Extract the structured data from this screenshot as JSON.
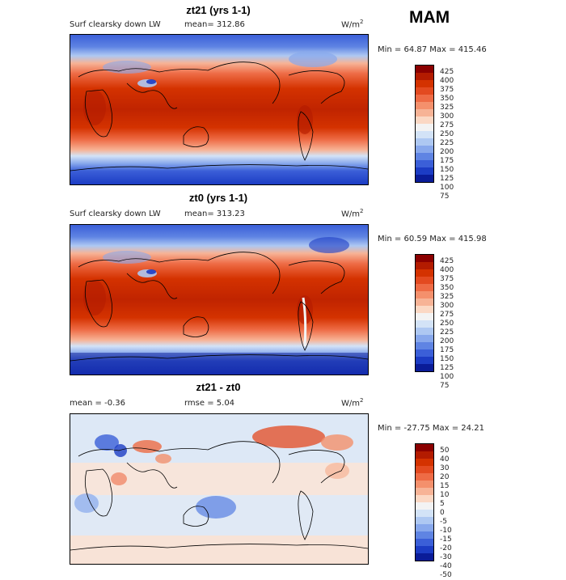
{
  "season": "MAM",
  "panels": [
    {
      "title": "zt21 (yrs 1-1)",
      "variable": "Surf clearsky down LW",
      "stat_left": "mean=  312.86",
      "stat_right": "",
      "units_base": "W/m",
      "units_exp": "2",
      "minmax": "Min =  64.87  Max =  415.46",
      "colorbar": {
        "labels": [
          "425",
          "400",
          "375",
          "350",
          "325",
          "300",
          "275",
          "250",
          "225",
          "200",
          "175",
          "150",
          "125",
          "100",
          "75"
        ],
        "colors": [
          "#8b0000",
          "#b31b00",
          "#d43200",
          "#e34a20",
          "#ee6b45",
          "#f4906c",
          "#f7b396",
          "#fbd8c4",
          "#f3f3f3",
          "#d3e3f7",
          "#aec8f2",
          "#88a8ec",
          "#5f84e3",
          "#3b5fd8",
          "#1c3cc4",
          "#0a1c98"
        ]
      }
    },
    {
      "title": "zt0 (yrs 1-1)",
      "variable": "Surf clearsky down LW",
      "stat_left": "mean=  313.23",
      "stat_right": "",
      "units_base": "W/m",
      "units_exp": "2",
      "minmax": "Min =  60.59  Max =  415.98",
      "colorbar": {
        "labels": [
          "425",
          "400",
          "375",
          "350",
          "325",
          "300",
          "275",
          "250",
          "225",
          "200",
          "175",
          "150",
          "125",
          "100",
          "75"
        ],
        "colors": [
          "#8b0000",
          "#b31b00",
          "#d43200",
          "#e34a20",
          "#ee6b45",
          "#f4906c",
          "#f7b396",
          "#fbd8c4",
          "#f3f3f3",
          "#d3e3f7",
          "#aec8f2",
          "#88a8ec",
          "#5f84e3",
          "#3b5fd8",
          "#1c3cc4",
          "#0a1c98"
        ]
      }
    },
    {
      "title": "zt21 - zt0",
      "variable": "",
      "stat_left": "mean =   -0.36",
      "stat_right": "rmse =   5.04",
      "units_base": "W/m",
      "units_exp": "2",
      "minmax": "Min = -27.75  Max =   24.21",
      "colorbar": {
        "labels": [
          "50",
          "40",
          "30",
          "20",
          "15",
          "10",
          "5",
          "0",
          "-5",
          "-10",
          "-15",
          "-20",
          "-30",
          "-40",
          "-50"
        ],
        "colors": [
          "#8b0000",
          "#b31b00",
          "#d43200",
          "#e34a20",
          "#ee6b45",
          "#f4906c",
          "#f7b396",
          "#fbd8c4",
          "#f3f3f3",
          "#d3e3f7",
          "#aec8f2",
          "#88a8ec",
          "#5f84e3",
          "#3b5fd8",
          "#1c3cc4",
          "#0a1c98"
        ]
      }
    }
  ]
}
